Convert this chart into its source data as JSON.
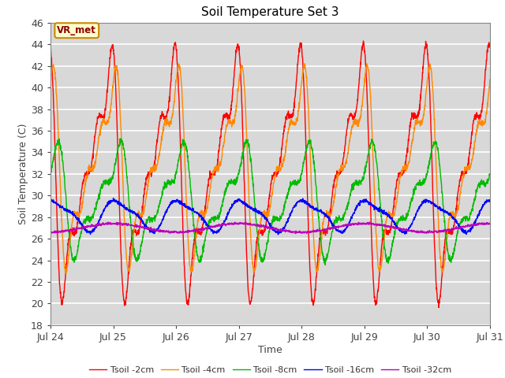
{
  "title": "Soil Temperature Set 3",
  "xlabel": "Time",
  "ylabel": "Soil Temperature (C)",
  "ylim": [
    18,
    46
  ],
  "yticks": [
    18,
    20,
    22,
    24,
    26,
    28,
    30,
    32,
    34,
    36,
    38,
    40,
    42,
    44,
    46
  ],
  "x_tick_labels": [
    "Jul 24",
    "Jul 25",
    "Jul 26",
    "Jul 27",
    "Jul 28",
    "Jul 29",
    "Jul 30",
    "Jul 31"
  ],
  "colors": {
    "Tsoil -2cm": "#ff0000",
    "Tsoil -4cm": "#ff8800",
    "Tsoil -8cm": "#00bb00",
    "Tsoil -16cm": "#0000ff",
    "Tsoil -32cm": "#bb00bb"
  },
  "legend_bg": "#ffffcc",
  "legend_border": "#cc8800",
  "bg_color": "#d8d8d8",
  "grid_color": "#ffffff",
  "annotation": "VR_met",
  "title_fontsize": 11,
  "axis_fontsize": 9
}
